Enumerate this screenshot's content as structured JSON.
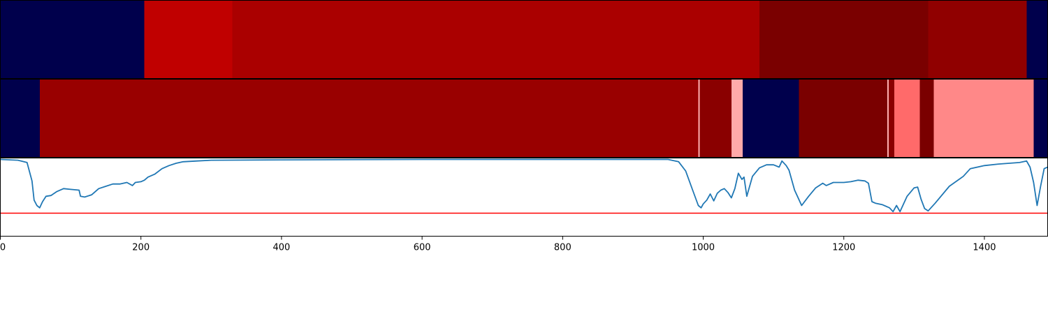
{
  "chart_data": {
    "type": "heatmap",
    "x_axis": {
      "range": [
        0,
        1490
      ],
      "ticks": [
        0,
        200,
        400,
        600,
        800,
        1000,
        1200,
        1400
      ],
      "tick_labels": [
        "0",
        "200",
        "400",
        "600",
        "800",
        "1000",
        "1200",
        "1400"
      ]
    },
    "panels": [
      {
        "kind": "segments",
        "segments": [
          {
            "start": 0,
            "end": 205,
            "color": "#00004c"
          },
          {
            "start": 205,
            "end": 330,
            "color": "#c00000"
          },
          {
            "start": 330,
            "end": 1080,
            "color": "#aa0000"
          },
          {
            "start": 1080,
            "end": 1320,
            "color": "#7a0000"
          },
          {
            "start": 1320,
            "end": 1460,
            "color": "#900000"
          },
          {
            "start": 1460,
            "end": 1490,
            "color": "#00004c"
          }
        ]
      },
      {
        "kind": "segments",
        "segments": [
          {
            "start": 0,
            "end": 56,
            "color": "#00004c"
          },
          {
            "start": 56,
            "end": 993,
            "color": "#990000"
          },
          {
            "start": 993,
            "end": 995,
            "color": "#ffb0b0"
          },
          {
            "start": 995,
            "end": 1040,
            "color": "#8a0000"
          },
          {
            "start": 1040,
            "end": 1056,
            "color": "#ffaaaa"
          },
          {
            "start": 1056,
            "end": 1136,
            "color": "#00004c"
          },
          {
            "start": 1136,
            "end": 1262,
            "color": "#7a0000"
          },
          {
            "start": 1262,
            "end": 1264,
            "color": "#ffb0b0"
          },
          {
            "start": 1264,
            "end": 1272,
            "color": "#8a0000"
          },
          {
            "start": 1272,
            "end": 1308,
            "color": "#ff6a6a"
          },
          {
            "start": 1308,
            "end": 1328,
            "color": "#7a0000"
          },
          {
            "start": 1328,
            "end": 1470,
            "color": "#ff8888"
          },
          {
            "start": 1470,
            "end": 1490,
            "color": "#00004c"
          }
        ]
      },
      {
        "kind": "line",
        "line_color": "#1f77b4",
        "threshold": 0.3,
        "threshold_color": "#ff0000",
        "ylim": [
          0,
          1
        ],
        "x": [
          0,
          25,
          38,
          45,
          48,
          52,
          56,
          60,
          65,
          72,
          80,
          90,
          100,
          112,
          114,
          120,
          130,
          140,
          150,
          160,
          170,
          180,
          188,
          192,
          200,
          205,
          210,
          220,
          230,
          240,
          250,
          260,
          280,
          300,
          400,
          600,
          800,
          900,
          950,
          965,
          975,
          985,
          993,
          997,
          1000,
          1005,
          1010,
          1015,
          1020,
          1025,
          1030,
          1035,
          1040,
          1045,
          1050,
          1055,
          1058,
          1062,
          1070,
          1080,
          1090,
          1100,
          1108,
          1112,
          1118,
          1122,
          1130,
          1140,
          1150,
          1160,
          1170,
          1175,
          1185,
          1200,
          1210,
          1220,
          1230,
          1235,
          1240,
          1245,
          1255,
          1265,
          1270,
          1275,
          1280,
          1290,
          1300,
          1305,
          1310,
          1315,
          1320,
          1330,
          1350,
          1370,
          1380,
          1400,
          1420,
          1435,
          1450,
          1460,
          1465,
          1470,
          1475,
          1480,
          1485,
          1490
        ],
        "y": [
          1.0,
          0.99,
          0.96,
          0.72,
          0.47,
          0.4,
          0.37,
          0.45,
          0.52,
          0.53,
          0.58,
          0.62,
          0.61,
          0.6,
          0.52,
          0.51,
          0.54,
          0.62,
          0.65,
          0.68,
          0.68,
          0.7,
          0.66,
          0.7,
          0.71,
          0.73,
          0.77,
          0.81,
          0.88,
          0.92,
          0.95,
          0.97,
          0.98,
          0.99,
          0.995,
          1.0,
          1.0,
          1.0,
          1.0,
          0.97,
          0.85,
          0.6,
          0.4,
          0.37,
          0.42,
          0.47,
          0.55,
          0.46,
          0.56,
          0.6,
          0.62,
          0.57,
          0.5,
          0.62,
          0.82,
          0.74,
          0.77,
          0.52,
          0.78,
          0.89,
          0.93,
          0.93,
          0.9,
          0.98,
          0.92,
          0.86,
          0.6,
          0.4,
          0.52,
          0.63,
          0.69,
          0.66,
          0.7,
          0.7,
          0.71,
          0.73,
          0.72,
          0.69,
          0.45,
          0.43,
          0.41,
          0.37,
          0.32,
          0.4,
          0.32,
          0.52,
          0.63,
          0.64,
          0.48,
          0.36,
          0.33,
          0.43,
          0.65,
          0.78,
          0.88,
          0.92,
          0.94,
          0.95,
          0.96,
          0.98,
          0.9,
          0.7,
          0.4,
          0.65,
          0.88,
          0.9
        ]
      }
    ]
  }
}
